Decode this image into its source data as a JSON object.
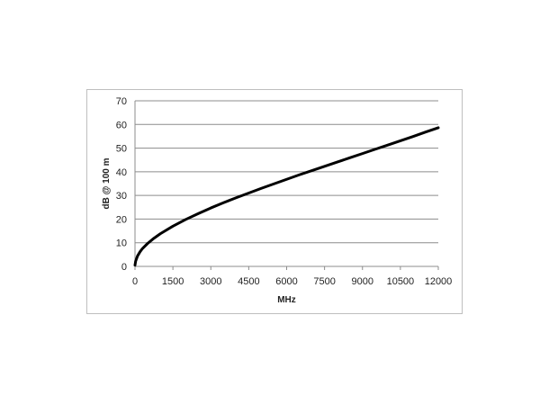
{
  "chart_data": {
    "type": "line",
    "title": "",
    "xlabel": "MHz",
    "ylabel": "dB @ 100 m",
    "xlim": [
      0,
      12000
    ],
    "ylim": [
      0,
      70
    ],
    "x_ticks": [
      "0",
      "1500",
      "3000",
      "4500",
      "6000",
      "7500",
      "9000",
      "10500",
      "12000"
    ],
    "y_ticks": [
      "0",
      "10",
      "20",
      "30",
      "40",
      "50",
      "60",
      "70"
    ],
    "grid": "horizontal",
    "legend": "none",
    "series": [
      {
        "color": "#000000",
        "x": [
          0,
          25,
          100,
          200,
          300,
          500,
          750,
          1000,
          1500,
          2000,
          2500,
          3000,
          3500,
          4000,
          4500,
          5000,
          5500,
          6000,
          6500,
          7000,
          7500,
          8000,
          8500,
          9000,
          9500,
          10000,
          10500,
          11000,
          11500,
          12000
        ],
        "y": [
          0.5,
          2.2,
          4.4,
          6.2,
          7.6,
          9.7,
          11.9,
          13.8,
          17.0,
          19.8,
          22.3,
          24.7,
          26.9,
          29.0,
          31.0,
          33.0,
          34.9,
          36.8,
          38.7,
          40.5,
          42.3,
          44.1,
          45.9,
          47.7,
          49.5,
          51.3,
          53.1,
          54.9,
          56.8,
          58.6
        ]
      }
    ]
  }
}
